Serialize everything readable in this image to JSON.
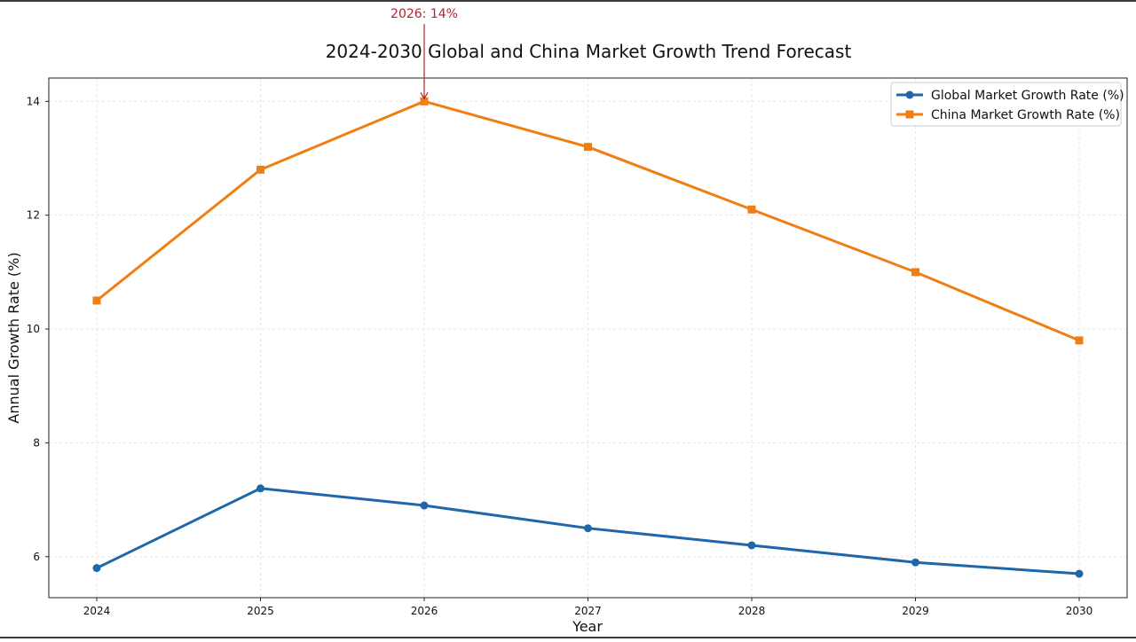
{
  "chart_data": {
    "type": "line",
    "title": "2024-2030 Global and China Market Growth Trend Forecast",
    "xlabel": "Year",
    "ylabel": "Annual Growth Rate (%)",
    "x": [
      "2024",
      "2025",
      "2026",
      "2027",
      "2028",
      "2029",
      "2030"
    ],
    "yticks": [
      "6",
      "8",
      "10",
      "12",
      "14"
    ],
    "ylim": [
      5.28,
      14.41
    ],
    "grid": true,
    "legend_position": "top-right",
    "series": [
      {
        "name": "Global Market Growth Rate (%)",
        "values": [
          5.8,
          7.2,
          6.9,
          6.5,
          6.2,
          5.9,
          5.7
        ],
        "color": "#1f67a8",
        "marker": "circle"
      },
      {
        "name": "China Market Growth Rate (%)",
        "values": [
          10.5,
          12.8,
          14.0,
          13.2,
          12.1,
          11.0,
          9.8
        ],
        "color": "#f07f13",
        "marker": "square"
      }
    ],
    "annotation": {
      "text": "2026: 14%",
      "x": "2026",
      "y": 14.0,
      "color": "#b22234"
    }
  }
}
